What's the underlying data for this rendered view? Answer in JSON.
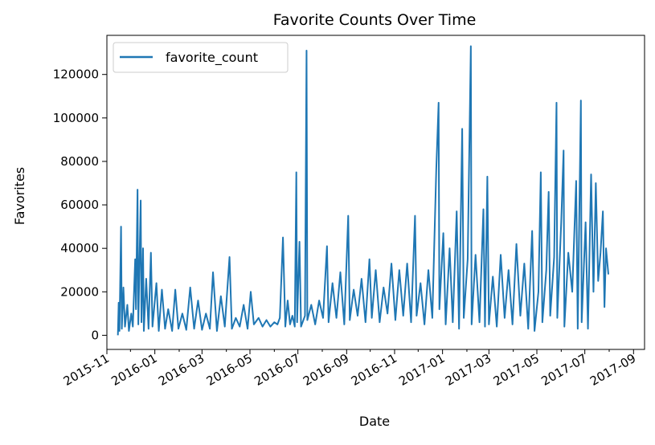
{
  "chart_data": {
    "type": "line",
    "title": "Favorite Counts Over Time",
    "xlabel": "Date",
    "ylabel": "Favorites",
    "x_range": [
      "2015-11-01",
      "2017-09-15"
    ],
    "ylim": [
      -6500,
      138000
    ],
    "x_ticks": [
      "2015-11",
      "2016-01",
      "2016-03",
      "2016-05",
      "2016-07",
      "2016-09",
      "2016-11",
      "2017-01",
      "2017-03",
      "2017-05",
      "2017-07",
      "2017-09"
    ],
    "y_ticks": [
      0,
      20000,
      40000,
      60000,
      80000,
      100000,
      120000
    ],
    "y_tick_labels": [
      "0",
      "20000",
      "40000",
      "60000",
      "80000",
      "100000",
      "120000"
    ],
    "grid": false,
    "legend_position": "top-left",
    "series": [
      {
        "name": "favorite_count",
        "color": "#1f77b4",
        "points": [
          [
            "2015-11-15",
            0
          ],
          [
            "2015-11-16",
            15000
          ],
          [
            "2015-11-17",
            2000
          ],
          [
            "2015-11-19",
            50000
          ],
          [
            "2015-11-20",
            3000
          ],
          [
            "2015-11-22",
            22000
          ],
          [
            "2015-11-24",
            4000
          ],
          [
            "2015-11-27",
            14000
          ],
          [
            "2015-11-29",
            2000
          ],
          [
            "2015-12-02",
            10000
          ],
          [
            "2015-12-04",
            4000
          ],
          [
            "2015-12-07",
            35000
          ],
          [
            "2015-12-08",
            12000
          ],
          [
            "2015-12-10",
            67000
          ],
          [
            "2015-12-11",
            5000
          ],
          [
            "2015-12-14",
            62000
          ],
          [
            "2015-12-15",
            6000
          ],
          [
            "2015-12-17",
            40000
          ],
          [
            "2015-12-18",
            2000
          ],
          [
            "2015-12-21",
            26000
          ],
          [
            "2015-12-24",
            3000
          ],
          [
            "2015-12-27",
            38000
          ],
          [
            "2015-12-29",
            4000
          ],
          [
            "2016-01-03",
            24000
          ],
          [
            "2016-01-06",
            2000
          ],
          [
            "2016-01-10",
            21000
          ],
          [
            "2016-01-14",
            3000
          ],
          [
            "2016-01-18",
            12000
          ],
          [
            "2016-01-23",
            2000
          ],
          [
            "2016-01-27",
            21000
          ],
          [
            "2016-01-31",
            3000
          ],
          [
            "2016-02-05",
            10000
          ],
          [
            "2016-02-10",
            2500
          ],
          [
            "2016-02-15",
            22000
          ],
          [
            "2016-02-20",
            3000
          ],
          [
            "2016-02-25",
            16000
          ],
          [
            "2016-03-01",
            2500
          ],
          [
            "2016-03-06",
            10000
          ],
          [
            "2016-03-11",
            3000
          ],
          [
            "2016-03-15",
            29000
          ],
          [
            "2016-03-20",
            2000
          ],
          [
            "2016-03-25",
            18000
          ],
          [
            "2016-03-30",
            4000
          ],
          [
            "2016-04-05",
            36000
          ],
          [
            "2016-04-08",
            3000
          ],
          [
            "2016-04-13",
            8000
          ],
          [
            "2016-04-18",
            4000
          ],
          [
            "2016-04-23",
            14000
          ],
          [
            "2016-04-28",
            3000
          ],
          [
            "2016-05-02",
            20000
          ],
          [
            "2016-05-06",
            5000
          ],
          [
            "2016-05-12",
            8000
          ],
          [
            "2016-05-17",
            4000
          ],
          [
            "2016-05-22",
            7000
          ],
          [
            "2016-05-27",
            4000
          ],
          [
            "2016-06-01",
            6000
          ],
          [
            "2016-06-05",
            5000
          ],
          [
            "2016-06-08",
            8000
          ],
          [
            "2016-06-12",
            45000
          ],
          [
            "2016-06-15",
            4000
          ],
          [
            "2016-06-18",
            16000
          ],
          [
            "2016-06-21",
            5000
          ],
          [
            "2016-06-24",
            9000
          ],
          [
            "2016-06-27",
            4000
          ],
          [
            "2016-06-29",
            75000
          ],
          [
            "2016-06-30",
            6000
          ],
          [
            "2016-07-03",
            43000
          ],
          [
            "2016-07-05",
            4000
          ],
          [
            "2016-07-10",
            9000
          ],
          [
            "2016-07-12",
            131000
          ],
          [
            "2016-07-13",
            7000
          ],
          [
            "2016-07-18",
            14000
          ],
          [
            "2016-07-23",
            5000
          ],
          [
            "2016-07-28",
            16000
          ],
          [
            "2016-08-02",
            8000
          ],
          [
            "2016-08-07",
            41000
          ],
          [
            "2016-08-09",
            6000
          ],
          [
            "2016-08-14",
            24000
          ],
          [
            "2016-08-19",
            8000
          ],
          [
            "2016-08-24",
            29000
          ],
          [
            "2016-08-29",
            5000
          ],
          [
            "2016-09-03",
            55000
          ],
          [
            "2016-09-05",
            7000
          ],
          [
            "2016-09-10",
            21000
          ],
          [
            "2016-09-15",
            9000
          ],
          [
            "2016-09-20",
            26000
          ],
          [
            "2016-09-25",
            6000
          ],
          [
            "2016-09-30",
            35000
          ],
          [
            "2016-10-03",
            8000
          ],
          [
            "2016-10-08",
            30000
          ],
          [
            "2016-10-13",
            6000
          ],
          [
            "2016-10-18",
            22000
          ],
          [
            "2016-10-23",
            10000
          ],
          [
            "2016-10-28",
            33000
          ],
          [
            "2016-11-02",
            7000
          ],
          [
            "2016-11-07",
            30000
          ],
          [
            "2016-11-12",
            9000
          ],
          [
            "2016-11-17",
            33000
          ],
          [
            "2016-11-22",
            6000
          ],
          [
            "2016-11-27",
            55000
          ],
          [
            "2016-11-29",
            9000
          ],
          [
            "2016-12-04",
            24000
          ],
          [
            "2016-12-09",
            5000
          ],
          [
            "2016-12-14",
            30000
          ],
          [
            "2016-12-19",
            8000
          ],
          [
            "2016-12-24",
            76000
          ],
          [
            "2016-12-27",
            107000
          ],
          [
            "2016-12-28",
            12000
          ],
          [
            "2017-01-02",
            47000
          ],
          [
            "2017-01-05",
            5000
          ],
          [
            "2017-01-10",
            40000
          ],
          [
            "2017-01-14",
            6000
          ],
          [
            "2017-01-19",
            57000
          ],
          [
            "2017-01-22",
            3000
          ],
          [
            "2017-01-26",
            95000
          ],
          [
            "2017-01-28",
            8000
          ],
          [
            "2017-02-02",
            35000
          ],
          [
            "2017-02-06",
            133000
          ],
          [
            "2017-02-07",
            5000
          ],
          [
            "2017-02-12",
            37000
          ],
          [
            "2017-02-17",
            6000
          ],
          [
            "2017-02-22",
            58000
          ],
          [
            "2017-02-24",
            4000
          ],
          [
            "2017-02-27",
            73000
          ],
          [
            "2017-03-01",
            5000
          ],
          [
            "2017-03-06",
            27000
          ],
          [
            "2017-03-11",
            4000
          ],
          [
            "2017-03-16",
            37000
          ],
          [
            "2017-03-21",
            8000
          ],
          [
            "2017-03-26",
            30000
          ],
          [
            "2017-03-31",
            5000
          ],
          [
            "2017-04-05",
            42000
          ],
          [
            "2017-04-10",
            9000
          ],
          [
            "2017-04-15",
            33000
          ],
          [
            "2017-04-20",
            3000
          ],
          [
            "2017-04-25",
            48000
          ],
          [
            "2017-04-28",
            2000
          ],
          [
            "2017-05-03",
            20000
          ],
          [
            "2017-05-06",
            75000
          ],
          [
            "2017-05-08",
            6000
          ],
          [
            "2017-05-13",
            30000
          ],
          [
            "2017-05-16",
            66000
          ],
          [
            "2017-05-18",
            9000
          ],
          [
            "2017-05-23",
            36000
          ],
          [
            "2017-05-26",
            107000
          ],
          [
            "2017-05-27",
            8000
          ],
          [
            "2017-06-01",
            52000
          ],
          [
            "2017-06-04",
            85000
          ],
          [
            "2017-06-05",
            4000
          ],
          [
            "2017-06-10",
            38000
          ],
          [
            "2017-06-15",
            20000
          ],
          [
            "2017-06-20",
            71000
          ],
          [
            "2017-06-22",
            3000
          ],
          [
            "2017-06-26",
            108000
          ],
          [
            "2017-06-27",
            6000
          ],
          [
            "2017-07-02",
            52000
          ],
          [
            "2017-07-05",
            3000
          ],
          [
            "2017-07-09",
            74000
          ],
          [
            "2017-07-12",
            20000
          ],
          [
            "2017-07-15",
            70000
          ],
          [
            "2017-07-18",
            25000
          ],
          [
            "2017-07-21",
            38000
          ],
          [
            "2017-07-24",
            57000
          ],
          [
            "2017-07-26",
            13000
          ],
          [
            "2017-07-28",
            40000
          ],
          [
            "2017-07-31",
            28000
          ]
        ]
      }
    ]
  }
}
